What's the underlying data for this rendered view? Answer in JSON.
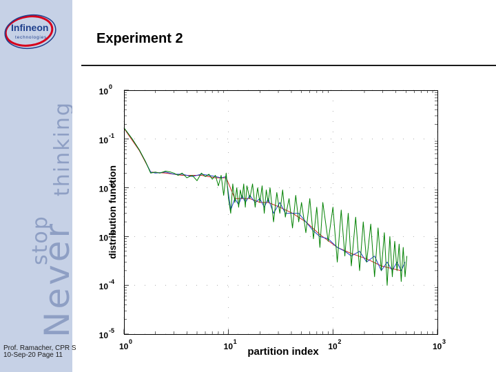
{
  "slide": {
    "title": "Experiment 2",
    "footer_author": "Prof. Ramacher, CPR S",
    "footer_date": "10-Sep-20 Page 11"
  },
  "brand": {
    "logo_name": "Infineon",
    "logo_sub": "technologies",
    "tagline_never": "Never",
    "tagline_stop": "stop",
    "tagline_thinking": "thinking"
  },
  "colors": {
    "sidebar_bg": "#c6d1e6",
    "logo_blue": "#1f3f8c",
    "logo_red": "#d6001c",
    "series_green": "#008000",
    "series_blue": "#1f3fc8",
    "series_red": "#d02020"
  },
  "chart_data": {
    "type": "line",
    "xlabel": "partition index",
    "ylabel": "distribution function",
    "xscale": "log",
    "yscale": "log",
    "xlim": [
      1,
      1000
    ],
    "ylim": [
      1e-05,
      1
    ],
    "xticks": [
      {
        "base": "10",
        "exp": "0",
        "value": 1
      },
      {
        "base": "10",
        "exp": "1",
        "value": 10
      },
      {
        "base": "10",
        "exp": "2",
        "value": 100
      },
      {
        "base": "10",
        "exp": "3",
        "value": 1000
      }
    ],
    "yticks": [
      {
        "base": "10",
        "exp": "0",
        "value": 1
      },
      {
        "base": "10",
        "exp": "-1",
        "value": 0.1
      },
      {
        "base": "10",
        "exp": "-2",
        "value": 0.01
      },
      {
        "base": "10",
        "exp": "-3",
        "value": 0.001
      },
      {
        "base": "10",
        "exp": "-4",
        "value": 0.0001
      },
      {
        "base": "10",
        "exp": "-5",
        "value": 1e-05
      }
    ],
    "grid": "dotted",
    "series": [
      {
        "color": "#008000",
        "x": [
          1,
          1.2,
          1.4,
          1.6,
          1.8,
          2,
          2.2,
          2.5,
          2.8,
          3,
          3.3,
          3.6,
          4,
          4.5,
          5,
          5.5,
          6,
          6.5,
          7,
          7.5,
          8,
          8.5,
          9,
          9.5,
          10,
          10.5,
          11,
          11.5,
          12,
          12.5,
          13,
          13.5,
          14,
          14.5,
          15,
          16,
          17,
          18,
          19,
          20,
          21,
          22,
          23,
          24,
          25,
          27,
          29,
          31,
          33,
          35,
          38,
          41,
          44,
          47,
          50,
          55,
          60,
          65,
          70,
          75,
          80,
          90,
          100,
          110,
          120,
          130,
          140,
          150,
          165,
          180,
          195,
          210,
          230,
          250,
          270,
          290,
          310,
          330,
          350,
          370,
          390,
          410,
          430,
          450,
          470,
          490,
          510
        ],
        "y": [
          0.17,
          0.1,
          0.06,
          0.035,
          0.02,
          0.021,
          0.02,
          0.022,
          0.021,
          0.02,
          0.018,
          0.02,
          0.016,
          0.018,
          0.014,
          0.02,
          0.017,
          0.019,
          0.015,
          0.018,
          0.011,
          0.018,
          0.007,
          0.02,
          0.006,
          0.003,
          0.012,
          0.005,
          0.01,
          0.004,
          0.009,
          0.006,
          0.012,
          0.004,
          0.011,
          0.006,
          0.012,
          0.004,
          0.01,
          0.005,
          0.011,
          0.003,
          0.009,
          0.005,
          0.01,
          0.002,
          0.008,
          0.003,
          0.009,
          0.0025,
          0.006,
          0.0015,
          0.007,
          0.002,
          0.005,
          0.0012,
          0.006,
          0.0009,
          0.004,
          0.0006,
          0.005,
          0.0008,
          0.004,
          0.0003,
          0.0035,
          0.0004,
          0.003,
          0.00025,
          0.0025,
          0.0002,
          0.002,
          0.0003,
          0.0018,
          0.00015,
          0.0015,
          0.0002,
          0.0012,
          0.0001,
          0.001,
          0.00015,
          0.0008,
          0.0002,
          0.0007,
          0.00012,
          0.0006,
          0.00015,
          0.0004
        ]
      },
      {
        "color": "#1f3fc8",
        "x": [
          1,
          1.2,
          1.4,
          1.6,
          1.8,
          2,
          2.5,
          3,
          3.6,
          4.5,
          5.5,
          6.5,
          7.5,
          8.5,
          9.5,
          10.5,
          11.5,
          12.5,
          13.5,
          14.5,
          16,
          18,
          20,
          22,
          24,
          27,
          31,
          35,
          41,
          47,
          55,
          65,
          75,
          90,
          110,
          130,
          150,
          180,
          210,
          250,
          290,
          330,
          370,
          410,
          450,
          490
        ],
        "y": [
          0.17,
          0.1,
          0.06,
          0.035,
          0.021,
          0.02,
          0.021,
          0.019,
          0.019,
          0.017,
          0.019,
          0.018,
          0.017,
          0.016,
          0.017,
          0.0035,
          0.006,
          0.0045,
          0.007,
          0.005,
          0.007,
          0.005,
          0.006,
          0.004,
          0.006,
          0.003,
          0.005,
          0.003,
          0.003,
          0.003,
          0.002,
          0.0013,
          0.001,
          0.0009,
          0.0006,
          0.0005,
          0.0004,
          0.0005,
          0.0003,
          0.0004,
          0.0002,
          0.0003,
          0.0002,
          0.0003,
          0.0002,
          0.0003
        ]
      },
      {
        "color": "#d02020",
        "x": [
          1,
          1.4,
          1.8,
          2.5,
          3.6,
          5.5,
          7.5,
          9.5,
          11.5,
          13.5,
          16,
          20,
          24,
          31,
          41,
          55,
          75,
          110,
          150,
          210,
          290,
          370,
          450
        ],
        "y": [
          0.165,
          0.058,
          0.021,
          0.02,
          0.018,
          0.018,
          0.016,
          0.016,
          0.006,
          0.006,
          0.006,
          0.005,
          0.005,
          0.004,
          0.003,
          0.002,
          0.0011,
          0.0006,
          0.00045,
          0.00035,
          0.00025,
          0.00022,
          0.0002
        ]
      }
    ]
  }
}
